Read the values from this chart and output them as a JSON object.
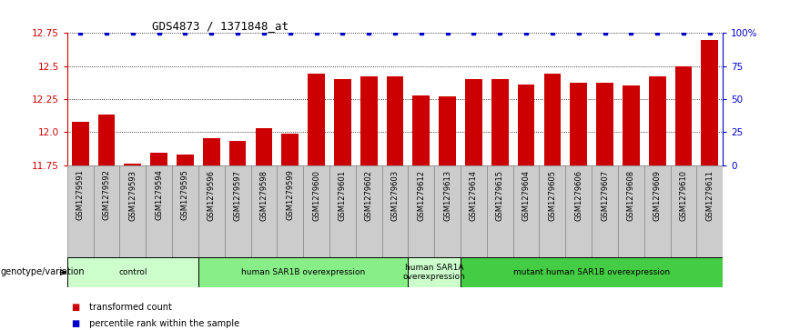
{
  "title": "GDS4873 / 1371848_at",
  "samples": [
    "GSM1279591",
    "GSM1279592",
    "GSM1279593",
    "GSM1279594",
    "GSM1279595",
    "GSM1279596",
    "GSM1279597",
    "GSM1279598",
    "GSM1279599",
    "GSM1279600",
    "GSM1279601",
    "GSM1279602",
    "GSM1279603",
    "GSM1279612",
    "GSM1279613",
    "GSM1279614",
    "GSM1279615",
    "GSM1279604",
    "GSM1279605",
    "GSM1279606",
    "GSM1279607",
    "GSM1279608",
    "GSM1279609",
    "GSM1279610",
    "GSM1279611"
  ],
  "bar_values": [
    12.08,
    12.13,
    11.76,
    11.84,
    11.83,
    11.95,
    11.93,
    12.03,
    11.99,
    12.44,
    12.4,
    12.42,
    12.42,
    12.28,
    12.27,
    12.4,
    12.4,
    12.36,
    12.44,
    12.37,
    12.37,
    12.35,
    12.42,
    12.5,
    12.7
  ],
  "percentile_values": [
    100,
    100,
    100,
    100,
    100,
    100,
    100,
    100,
    100,
    100,
    100,
    100,
    100,
    100,
    100,
    100,
    100,
    100,
    100,
    100,
    100,
    100,
    100,
    100,
    100
  ],
  "ylim": [
    11.75,
    12.75
  ],
  "yticks": [
    11.75,
    12.0,
    12.25,
    12.5,
    12.75
  ],
  "right_yticks": [
    0,
    25,
    50,
    75,
    100
  ],
  "right_ylim": [
    0,
    100
  ],
  "groups": [
    {
      "label": "control",
      "start": 0,
      "end": 5,
      "color": "#ccffcc"
    },
    {
      "label": "human SAR1B overexpression",
      "start": 5,
      "end": 13,
      "color": "#88ee88"
    },
    {
      "label": "human SAR1A\noverexpression",
      "start": 13,
      "end": 15,
      "color": "#ccffcc"
    },
    {
      "label": "mutant human SAR1B overexpression",
      "start": 15,
      "end": 25,
      "color": "#44cc44"
    }
  ],
  "bar_color": "#cc0000",
  "dot_color": "#0000cc",
  "bar_width": 0.65,
  "plot_bg": "#ffffff",
  "tick_bg": "#cccccc",
  "grid_color": "#000000",
  "xlabel_color": "#cc0000",
  "ylabel_right_color": "#0000cc",
  "genotype_label": "genotype/variation"
}
